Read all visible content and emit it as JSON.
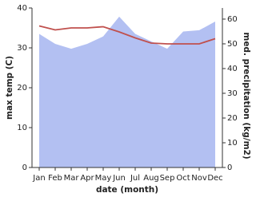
{
  "chart_data": {
    "type": "line",
    "x_label": "date (month)",
    "y_label": "max temp (C)",
    "y2_label": "med. precipitation (kg/m2)",
    "categories": [
      "Jan",
      "Feb",
      "Mar",
      "Apr",
      "May",
      "Jun",
      "Jul",
      "Aug",
      "Sep",
      "Oct",
      "Nov",
      "Dec"
    ],
    "series": [
      {
        "type": "area",
        "axis": "y2",
        "color": "#b3c0f2",
        "values": [
          54,
          50,
          48,
          50,
          53,
          61,
          54,
          51,
          48,
          55,
          55.5,
          59
        ]
      },
      {
        "type": "line",
        "color": "#c0504d",
        "values": [
          35.5,
          34.5,
          35,
          35,
          35.3,
          34,
          32.5,
          31.2,
          31,
          31,
          31,
          32.3
        ]
      }
    ],
    "ylim": [
      0,
      40
    ],
    "yticks": [
      0,
      10,
      20,
      30,
      40
    ],
    "y2lim": [
      0,
      64.5
    ],
    "y2ticks": [
      0,
      10,
      20,
      30,
      40,
      50,
      60
    ]
  }
}
